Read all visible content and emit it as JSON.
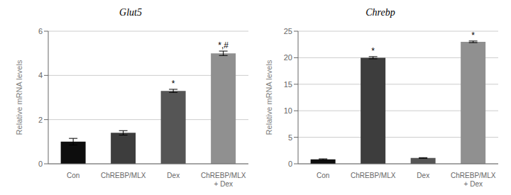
{
  "chart_data": [
    {
      "type": "bar",
      "title": "Glut5",
      "categories": [
        "Con",
        "ChREBP/MLX",
        "Dex",
        "ChREBP/MLX\n+ Dex"
      ],
      "values": [
        1.0,
        1.4,
        3.3,
        5.0
      ],
      "errors": [
        0.15,
        0.1,
        0.07,
        0.1
      ],
      "colors": [
        "#0d0d0d",
        "#3d3d3d",
        "#555555",
        "#909090"
      ],
      "ylim": [
        0,
        6
      ],
      "yticks": [
        0,
        2,
        4,
        6
      ],
      "ylabel": "Relative mRNA levels",
      "grid": true,
      "annotations": [
        {
          "category": "Dex",
          "text": "*"
        },
        {
          "category": "ChREBP/MLX\n+ Dex",
          "text": "*,#"
        }
      ]
    },
    {
      "type": "bar",
      "title": "Chrebp",
      "categories": [
        "Con",
        "ChREBP/MLX",
        "Dex",
        "ChREBP/MLX\n+ Dex"
      ],
      "values": [
        0.85,
        20.0,
        1.1,
        23.0
      ],
      "errors": [
        0.08,
        0.2,
        0.06,
        0.15
      ],
      "colors": [
        "#0d0d0d",
        "#3d3d3d",
        "#555555",
        "#909090"
      ],
      "ylim": [
        0,
        25
      ],
      "yticks": [
        0,
        5,
        10,
        15,
        20,
        25
      ],
      "ylabel": "Relative mRNA levels",
      "grid": true,
      "annotations": [
        {
          "category": "ChREBP/MLX",
          "text": "*"
        },
        {
          "category": "ChREBP/MLX\n+ Dex",
          "text": "*"
        }
      ]
    }
  ]
}
